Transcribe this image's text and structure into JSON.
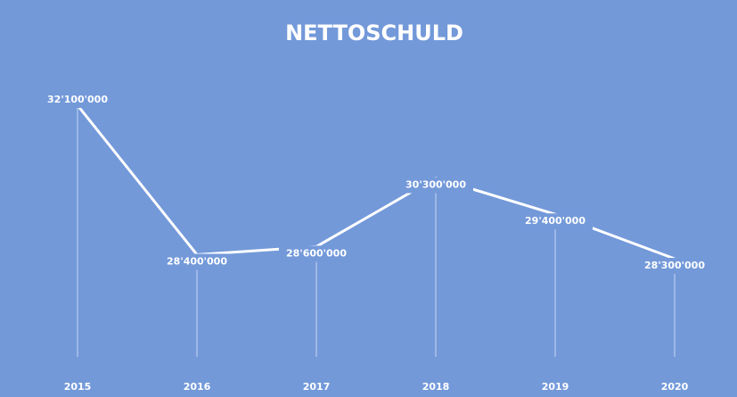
{
  "chart_data": {
    "type": "line",
    "title": "NETTOSCHULD",
    "categories": [
      "2015",
      "2016",
      "2017",
      "2018",
      "2019",
      "2020"
    ],
    "values": [
      32100000,
      28400000,
      28600000,
      30300000,
      29400000,
      28300000
    ],
    "value_labels": [
      "32'100'000",
      "28'400'000",
      "28'600'000",
      "30'300'000",
      "29'400'000",
      "28'300'000"
    ],
    "color": "#ffffff"
  }
}
